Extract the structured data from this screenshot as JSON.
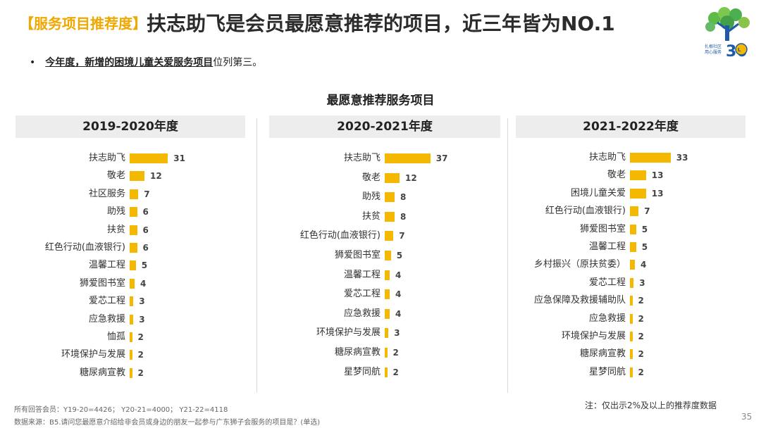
{
  "title": {
    "tag": "【服务项目推荐度】",
    "main": "扶志助飞是会员最愿意推荐的项目，近三年皆为NO.1"
  },
  "bullet": {
    "highlight": "今年度，新增的困境儿童关爱服务项目",
    "rest": "位列第三。"
  },
  "section_title": "最愿意推荐服务项目",
  "chart_data": [
    {
      "type": "bar",
      "orientation": "horizontal",
      "title": "2019-2020年度",
      "categories": [
        "扶志助飞",
        "敬老",
        "社区服务",
        "助残",
        "扶贫",
        "红色行动(血液银行)",
        "温馨工程",
        "狮爱图书室",
        "爱芯工程",
        "应急救援",
        "恤孤",
        "环境保护与发展",
        "糖尿病宣教"
      ],
      "values": [
        31,
        12,
        7,
        6,
        6,
        6,
        5,
        4,
        3,
        3,
        2,
        2,
        2
      ],
      "color": "#F5B800"
    },
    {
      "type": "bar",
      "orientation": "horizontal",
      "title": "2020-2021年度",
      "categories": [
        "扶志助飞",
        "敬老",
        "助残",
        "扶贫",
        "红色行动(血液银行)",
        "狮爱图书室",
        "温馨工程",
        "爱芯工程",
        "应急救援",
        "环境保护与发展",
        "糖尿病宣教",
        "星梦同航"
      ],
      "values": [
        37,
        12,
        8,
        8,
        7,
        5,
        4,
        4,
        4,
        3,
        2,
        2
      ],
      "color": "#F5B800"
    },
    {
      "type": "bar",
      "orientation": "horizontal",
      "title": "2021-2022年度",
      "categories": [
        "扶志助飞",
        "敬老",
        "困境儿童关爱",
        "红色行动(血液银行)",
        "狮爱图书室",
        "温馨工程",
        "乡村振兴（原扶贫委）",
        "爱芯工程",
        "应急保障及救援辅助队",
        "应急救援",
        "环境保护与发展",
        "糖尿病宣教",
        "星梦同航"
      ],
      "values": [
        33,
        13,
        13,
        7,
        5,
        5,
        4,
        3,
        2,
        2,
        2,
        2,
        2
      ],
      "color": "#F5B800"
    }
  ],
  "footer": {
    "respondents": "所有回答会员：Y19-20=4426；  Y20-21=4000；  Y21-22=4118",
    "source": "数据来源：B5.请问您最愿意介绍给非会员或身边的朋友一起参与广东狮子会服务的项目是？(单选)"
  },
  "note": "注：仅出示2%及以上的推荐度数据",
  "page_number": "35",
  "colors": {
    "accent": "#F5B800",
    "title_tag": "#F0A800"
  }
}
